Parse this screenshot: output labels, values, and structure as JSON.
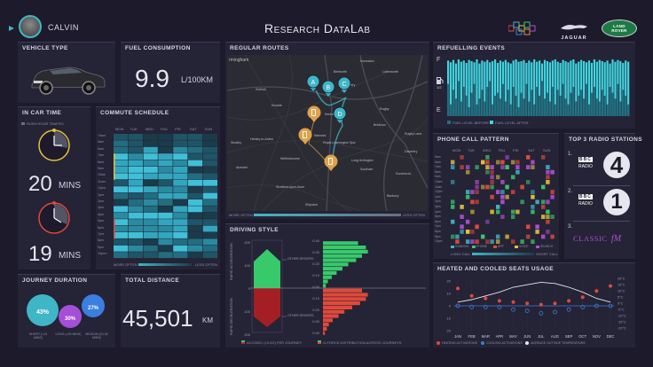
{
  "header": {
    "user_name": "CALVIN",
    "title": "Research DataLab",
    "brand_logo_text": "JAGUAR",
    "brand2_logo_text": "LAND ROVER"
  },
  "vehicle_type": {
    "title": "VEHICLE TYPE"
  },
  "fuel": {
    "title": "FUEL CONSUMPTION",
    "value": "9.9",
    "unit": "L/100KM"
  },
  "in_car_time": {
    "title": "IN CAR TIME",
    "legend": "RUSH HOUR TRAFFIC",
    "morning_value": "20",
    "evening_value": "19",
    "unit": "MINS"
  },
  "commute": {
    "title": "COMMUTE SCHEDULE",
    "days": [
      "MON",
      "TUE",
      "WED",
      "THU",
      "FRI",
      "SAT",
      "SUN"
    ],
    "hours": [
      "<5am",
      "5am",
      "6am",
      "7am",
      "8am",
      "9am",
      "10am",
      "11am",
      "12pm",
      "1pm",
      "2pm",
      "3pm",
      "4pm",
      "5pm",
      "6pm",
      "7pm",
      "8pm",
      "9pm",
      "10pm+"
    ],
    "legend_left": "MORE OFTEN",
    "legend_right": "LESS OFTEN"
  },
  "routes": {
    "title": "REGULAR ROUTES",
    "markers": [
      "A",
      "B",
      "C",
      "D"
    ],
    "places": [
      "rmingham",
      "Solihull",
      "Kenilworth",
      "Coventry",
      "Warwick",
      "Royal Leamington Spa",
      "Rugby",
      "Nuneaton",
      "Henley-in-Arden",
      "Stratford-upon-Avon",
      "Daventry",
      "Southam",
      "Alcester",
      "Lutterworth",
      "Shipston",
      "Wellesbourne",
      "Knowle",
      "Bedworth",
      "Studley",
      "Banbury",
      "Brinklow",
      "Dunchurch",
      "Rugby Lane",
      "Long Itchington"
    ],
    "legend_left": "MORE OFTEN",
    "legend_right": "LESS OFTEN"
  },
  "driving_style": {
    "title": "DRIVING STYLE",
    "y_label_top": "RAPID ACCELERATION",
    "y_label_bottom": "RAPID DECELERATION",
    "other_drivers": "OTHER DRIVERS",
    "ticks_left": [
      "200",
      "100",
      "0",
      "100",
      "200"
    ],
    "ticks_right": [
      "0.40",
      "0.30",
      "0.20",
      "0.10",
      "0.00",
      "0.10",
      "0.20",
      "0.30",
      "0.40"
    ],
    "legend1": "ACC/DEC (>0.2G) PER JOURNEY",
    "legend2": "G-FORCE DISTRIBUTION ACROSS JOURNEYS",
    "accel_hist": [
      3,
      5,
      9,
      14,
      20,
      26,
      34,
      40,
      46,
      44,
      36
    ],
    "decel_hist": [
      40,
      46,
      44,
      38,
      30,
      22,
      16,
      10,
      6,
      4,
      2
    ]
  },
  "refuelling": {
    "title": "REFUELLING EVENTS",
    "full_label": "F",
    "half_label": "1/2",
    "empty_label": "E",
    "legend_before": "FUEL LEVEL BEFORE",
    "legend_after": "FUEL LEVEL AFTER",
    "before": [
      0.55,
      0.2,
      0.45,
      0.3,
      0.6,
      0.25,
      0.5,
      0.35,
      0.15,
      0.4,
      0.55,
      0.2,
      0.3,
      0.45,
      0.25,
      0.5,
      0.6,
      0.2,
      0.35,
      0.4,
      0.3,
      0.55,
      0.25,
      0.45,
      0.2,
      0.5,
      0.35,
      0.15,
      0.4,
      0.3,
      0.55,
      0.25,
      0.45,
      0.2,
      0.5,
      0.35,
      0.6,
      0.3,
      0.4,
      0.25,
      0.5,
      0.2,
      0.45,
      0.35,
      0.55,
      0.3,
      0.2,
      0.4,
      0.5,
      0.25,
      0.35,
      0.45,
      0.3,
      0.55,
      0.2,
      0.4,
      0.5,
      0.3,
      0.25,
      0.45,
      0.35,
      0.2,
      0.5,
      0.4,
      0.3,
      0.55,
      0.25,
      0.45,
      0.35,
      0.2
    ],
    "after": [
      0.95,
      0.92,
      0.96,
      0.9,
      0.97,
      0.93,
      0.95,
      0.91,
      0.96,
      0.94,
      0.92,
      0.97,
      0.9,
      0.95,
      0.93,
      0.96,
      0.92,
      0.94,
      0.97,
      0.91,
      0.95,
      0.93,
      0.96,
      0.92,
      0.9,
      0.95,
      0.97,
      0.93,
      0.94,
      0.96,
      0.91,
      0.95,
      0.92,
      0.97,
      0.93,
      0.95,
      0.9,
      0.96,
      0.94,
      0.92,
      0.95,
      0.97,
      0.93,
      0.91,
      0.96,
      0.94,
      0.92,
      0.95,
      0.97,
      0.9,
      0.93,
      0.96,
      0.94,
      0.92,
      0.95,
      0.91,
      0.97,
      0.93,
      0.96,
      0.94,
      0.92,
      0.95,
      0.9,
      0.97,
      0.93,
      0.96,
      0.94,
      0.91,
      0.95,
      0.93
    ]
  },
  "phone_calls": {
    "title": "PHONE CALL PATTERN",
    "days": [
      "MON",
      "TUE",
      "WED",
      "THU",
      "FRI",
      "SAT",
      "SUN"
    ],
    "hours": [
      "5am",
      "6am",
      "7am",
      "8am",
      "9am",
      "10am",
      "11am",
      "12pm",
      "1pm",
      "2pm",
      "3pm",
      "4pm",
      "5pm",
      "6pm",
      "7pm",
      "8pm",
      "9pm",
      "10pm"
    ],
    "legend": [
      "RANDOM",
      "PHONE",
      "APP",
      "VOICE",
      "SEARCH"
    ],
    "legend_colors": [
      "#3fb6c6",
      "#38c96b",
      "#e0493b",
      "#e3c23a",
      "#b04fd6"
    ],
    "legend_left": "LONG CALL",
    "legend_right": "SHORT CALL"
  },
  "radio": {
    "title": "TOP 3 RADIO STATIONS",
    "ranks": [
      "1.",
      "2.",
      "3."
    ],
    "stations": [
      "RADIO 4",
      "RADIO 1",
      "CLASSIC fM"
    ],
    "bbc_label": "BBC",
    "radio_label": "RADIO",
    "station1_number": "4",
    "station2_number": "1",
    "classic_text": "CLASSIC",
    "fm_text": "fM"
  },
  "journey_duration": {
    "title": "JOURNEY DURATION",
    "bubbles": [
      {
        "value": "43%",
        "label": "SHORT (<10 MINS)",
        "color": "#3fb6c6"
      },
      {
        "value": "30%",
        "label": "LONG (>30 MINS)",
        "color": "#a44fd8"
      },
      {
        "value": "27%",
        "label": "MEDIUM (10-30 MINS)",
        "color": "#3a7fe0"
      }
    ]
  },
  "total_distance": {
    "title": "TOTAL DISTANCE",
    "value": "45,501",
    "unit": "KM"
  },
  "seats": {
    "title": "HEATED AND COOLED SEATS USAGE",
    "months": [
      "JAN",
      "FEB",
      "MAR",
      "APR",
      "MAY",
      "JUN",
      "JUL",
      "AUG",
      "SEP",
      "OCT",
      "NOV",
      "DEC"
    ],
    "ticks_left": [
      "20",
      "10",
      "0",
      "10",
      "20"
    ],
    "ticks_right": [
      "20°C",
      "15°C",
      "10°C",
      "5°C",
      "0°C",
      "-5°C",
      "-10°C",
      "-15°C",
      "-20°C"
    ],
    "legend": [
      "HEATING ACTIVATIONS",
      "COOLING ACTIVATIONS",
      "AVERAGE OUTSIDE TEMPERATURE"
    ],
    "chart_data": {
      "type": "scatter",
      "x": [
        "JAN",
        "FEB",
        "MAR",
        "APR",
        "MAY",
        "JUN",
        "JUL",
        "AUG",
        "SEP",
        "OCT",
        "NOV",
        "DEC"
      ],
      "series": [
        {
          "name": "HEATING ACTIVATIONS",
          "values": [
            14,
            8,
            6,
            4,
            3,
            2,
            1,
            2,
            4,
            7,
            12,
            16
          ]
        },
        {
          "name": "COOLING ACTIVATIONS",
          "values": [
            0,
            1,
            1,
            1,
            3,
            4,
            6,
            5,
            3,
            1,
            0,
            0
          ]
        },
        {
          "name": "AVERAGE OUTSIDE TEMPERATURE",
          "values": [
            3,
            5,
            8,
            11,
            15,
            17,
            19,
            18,
            15,
            11,
            6,
            3
          ]
        }
      ]
    }
  }
}
